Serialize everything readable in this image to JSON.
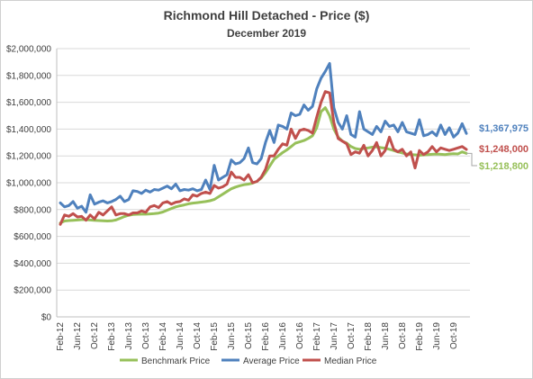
{
  "chart_data": {
    "type": "line",
    "title": "Richmond Hill Detached - Price ($)",
    "subtitle": "December 2019",
    "xlabel": "",
    "ylabel": "",
    "ylim": [
      0,
      2000000
    ],
    "y_ticks": [
      "$0",
      "$200,000",
      "$400,000",
      "$600,000",
      "$800,000",
      "$1,000,000",
      "$1,200,000",
      "$1,400,000",
      "$1,600,000",
      "$1,800,000",
      "$2,000,000"
    ],
    "x_start": "Feb-12",
    "x_end": "Dec-19",
    "x_ticks": [
      "Feb-12",
      "Jun-12",
      "Oct-12",
      "Feb-13",
      "Jun-13",
      "Oct-13",
      "Feb-14",
      "Jun-14",
      "Oct-14",
      "Feb-15",
      "Jun-15",
      "Oct-15",
      "Feb-16",
      "Jun-16",
      "Oct-16",
      "Feb-17",
      "Jun-17",
      "Oct-17",
      "Feb-18",
      "Jun-18",
      "Oct-18",
      "Feb-19",
      "Jun-19",
      "Oct-19"
    ],
    "grid": true,
    "legend_position": "bottom",
    "series": [
      {
        "name": "Benchmark Price",
        "color": "#97c05a",
        "end_label": "$1,218,800",
        "values": [
          700000,
          715000,
          718000,
          720000,
          722000,
          725000,
          725000,
          722000,
          720000,
          718000,
          716000,
          715000,
          716000,
          722000,
          735000,
          748000,
          758000,
          763000,
          765000,
          766000,
          766000,
          768000,
          770000,
          774000,
          782000,
          795000,
          808000,
          820000,
          828000,
          835000,
          843000,
          848000,
          852000,
          856000,
          860000,
          866000,
          875000,
          895000,
          915000,
          935000,
          955000,
          968000,
          978000,
          985000,
          990000,
          997000,
          1010000,
          1035000,
          1075000,
          1125000,
          1175000,
          1200000,
          1225000,
          1245000,
          1270000,
          1295000,
          1305000,
          1315000,
          1330000,
          1350000,
          1410000,
          1530000,
          1560000,
          1500000,
          1400000,
          1340000,
          1310000,
          1295000,
          1270000,
          1255000,
          1250000,
          1255000,
          1260000,
          1265000,
          1268000,
          1262000,
          1258000,
          1250000,
          1240000,
          1230000,
          1222000,
          1215000,
          1210000,
          1208000,
          1205000,
          1208000,
          1210000,
          1212000,
          1214000,
          1212000,
          1210000,
          1214000,
          1216000,
          1215000,
          1230000,
          1218800
        ]
      },
      {
        "name": "Average Price",
        "color": "#4f81bd",
        "end_label": "$1,367,975",
        "values": [
          850000,
          820000,
          830000,
          860000,
          810000,
          825000,
          780000,
          910000,
          840000,
          855000,
          865000,
          850000,
          860000,
          875000,
          900000,
          860000,
          875000,
          940000,
          935000,
          920000,
          945000,
          930000,
          950000,
          945000,
          960000,
          975000,
          955000,
          990000,
          940000,
          950000,
          945000,
          955000,
          940000,
          950000,
          1020000,
          950000,
          1130000,
          1020000,
          1040000,
          1060000,
          1170000,
          1140000,
          1150000,
          1180000,
          1260000,
          1150000,
          1140000,
          1180000,
          1300000,
          1390000,
          1300000,
          1430000,
          1420000,
          1400000,
          1520000,
          1500000,
          1510000,
          1580000,
          1540000,
          1570000,
          1700000,
          1780000,
          1830000,
          1890000,
          1560000,
          1450000,
          1400000,
          1500000,
          1360000,
          1340000,
          1530000,
          1400000,
          1380000,
          1360000,
          1420000,
          1380000,
          1460000,
          1420000,
          1430000,
          1380000,
          1450000,
          1380000,
          1370000,
          1360000,
          1470000,
          1350000,
          1360000,
          1380000,
          1350000,
          1430000,
          1360000,
          1410000,
          1340000,
          1370000,
          1440000,
          1367975
        ]
      },
      {
        "name": "Median Price",
        "color": "#c0504d",
        "end_label": "$1,248,000",
        "values": [
          690000,
          760000,
          750000,
          770000,
          745000,
          750000,
          720000,
          760000,
          730000,
          780000,
          760000,
          790000,
          820000,
          760000,
          770000,
          770000,
          760000,
          775000,
          775000,
          790000,
          780000,
          820000,
          830000,
          815000,
          850000,
          860000,
          840000,
          855000,
          860000,
          880000,
          870000,
          910000,
          900000,
          920000,
          930000,
          920000,
          980000,
          960000,
          970000,
          990000,
          1080000,
          1040000,
          1040000,
          1020000,
          1060000,
          1000000,
          1010000,
          1040000,
          1100000,
          1200000,
          1200000,
          1250000,
          1290000,
          1280000,
          1400000,
          1330000,
          1390000,
          1400000,
          1390000,
          1370000,
          1490000,
          1600000,
          1680000,
          1670000,
          1450000,
          1330000,
          1310000,
          1290000,
          1210000,
          1230000,
          1220000,
          1280000,
          1200000,
          1240000,
          1300000,
          1200000,
          1240000,
          1340000,
          1250000,
          1230000,
          1250000,
          1200000,
          1230000,
          1110000,
          1240000,
          1210000,
          1230000,
          1270000,
          1230000,
          1260000,
          1250000,
          1240000,
          1250000,
          1260000,
          1270000,
          1248000
        ]
      }
    ]
  }
}
